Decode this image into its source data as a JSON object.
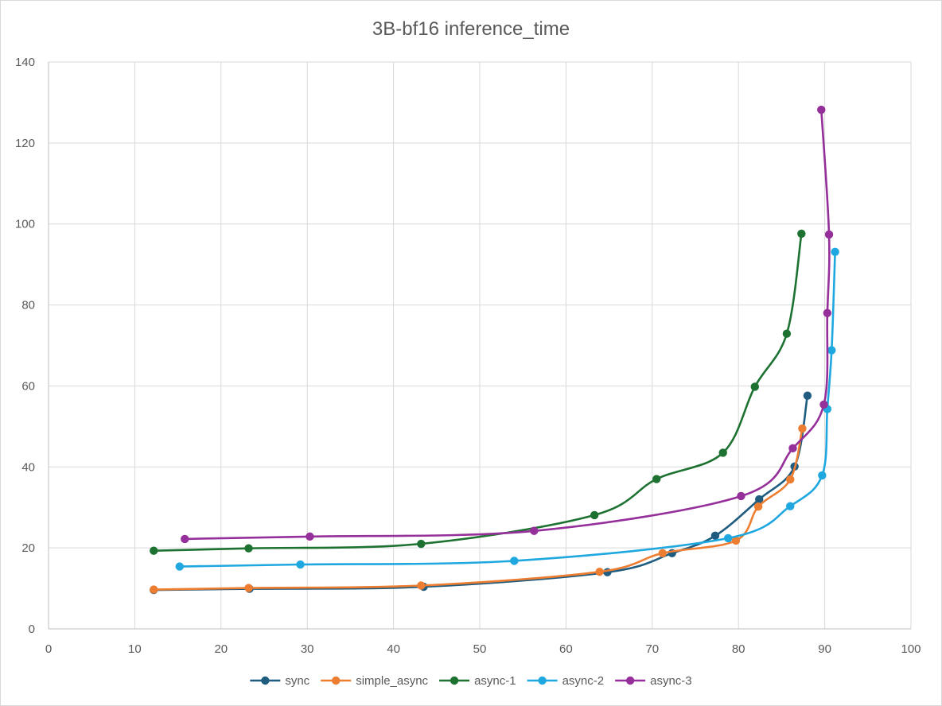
{
  "chart_data": {
    "type": "scatter",
    "title": "3B-bf16 inference_time",
    "xlabel": "",
    "ylabel": "",
    "xlim": [
      0,
      100
    ],
    "ylim": [
      0,
      140
    ],
    "x_ticks": [
      0,
      10,
      20,
      30,
      40,
      50,
      60,
      70,
      80,
      90,
      100
    ],
    "y_ticks": [
      0,
      20,
      40,
      60,
      80,
      100,
      120,
      140
    ],
    "grid": true,
    "legend_position": "bottom",
    "lines": "smooth lines with markers",
    "series": [
      {
        "name": "sync",
        "color": "#1f5c80",
        "points": [
          [
            12.2,
            9.6
          ],
          [
            23.3,
            9.9
          ],
          [
            43.5,
            10.4
          ],
          [
            64.8,
            14.0
          ],
          [
            72.3,
            18.7
          ],
          [
            77.3,
            23.0
          ],
          [
            82.4,
            32.0
          ],
          [
            86.5,
            40.1
          ],
          [
            88.0,
            57.6
          ]
        ]
      },
      {
        "name": "simple_async",
        "color": "#ed7d31",
        "points": [
          [
            12.2,
            9.7
          ],
          [
            23.2,
            10.1
          ],
          [
            43.2,
            10.7
          ],
          [
            63.9,
            14.1
          ],
          [
            71.2,
            18.7
          ],
          [
            79.7,
            21.8
          ],
          [
            82.3,
            30.2
          ],
          [
            86.0,
            36.9
          ],
          [
            87.4,
            49.5
          ]
        ]
      },
      {
        "name": "async-1",
        "color": "#1e7231",
        "points": [
          [
            12.2,
            19.3
          ],
          [
            23.2,
            19.9
          ],
          [
            43.2,
            21.0
          ],
          [
            63.3,
            28.1
          ],
          [
            70.5,
            37.0
          ],
          [
            78.2,
            43.5
          ],
          [
            81.9,
            59.8
          ],
          [
            85.6,
            72.9
          ],
          [
            87.3,
            97.6
          ]
        ]
      },
      {
        "name": "async-2",
        "color": "#1fa8e0",
        "points": [
          [
            15.2,
            15.4
          ],
          [
            29.2,
            15.9
          ],
          [
            54.0,
            16.8
          ],
          [
            78.8,
            22.4
          ],
          [
            86.0,
            30.3
          ],
          [
            89.7,
            37.9
          ],
          [
            90.3,
            54.3
          ],
          [
            90.8,
            68.8
          ],
          [
            91.2,
            93.1
          ]
        ]
      },
      {
        "name": "async-3",
        "color": "#952f9a",
        "points": [
          [
            15.8,
            22.2
          ],
          [
            30.3,
            22.8
          ],
          [
            56.3,
            24.2
          ],
          [
            80.3,
            32.8
          ],
          [
            86.3,
            44.6
          ],
          [
            89.9,
            55.4
          ],
          [
            90.3,
            78.0
          ],
          [
            90.5,
            97.4
          ],
          [
            89.6,
            128.2
          ]
        ]
      }
    ]
  }
}
